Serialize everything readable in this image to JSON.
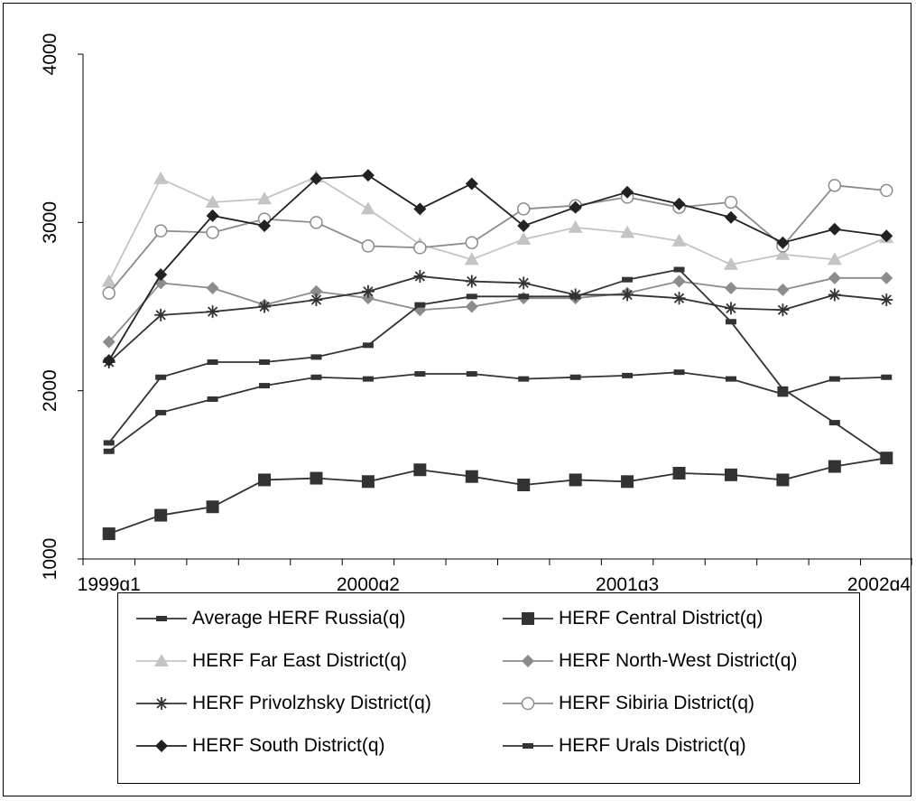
{
  "chart_data": {
    "type": "line",
    "x": [
      "1999q1",
      "1999q2",
      "1999q3",
      "1999q4",
      "2000q1",
      "2000q2",
      "2000q3",
      "2000q4",
      "2001q1",
      "2001q2",
      "2001q3",
      "2001q4",
      "2002q1",
      "2002q2",
      "2002q3",
      "2002q4"
    ],
    "x_tick_labels": [
      "1999q1",
      "2000q2",
      "2001q3",
      "2002q4"
    ],
    "y_tick_labels": [
      "1000",
      "2000",
      "3000",
      "4000"
    ],
    "ylim": [
      1000,
      4000
    ],
    "grid": false,
    "legend_placement": "bottom",
    "series": [
      {
        "name": "Average HERF Russia(q)",
        "color": "#333333",
        "marker": "dash",
        "values": [
          1640,
          1870,
          1950,
          2030,
          2080,
          2070,
          2100,
          2100,
          2070,
          2080,
          2090,
          2110,
          2070,
          1980,
          2070,
          2080
        ]
      },
      {
        "name": "HERF Central District(q)",
        "color": "#333333",
        "marker": "square",
        "values": [
          1150,
          1260,
          1310,
          1470,
          1480,
          1460,
          1530,
          1490,
          1440,
          1470,
          1460,
          1510,
          1500,
          1470,
          1550,
          1600
        ]
      },
      {
        "name": "HERF Far East District(q)",
        "color": "#c4c4c4",
        "marker": "triangle",
        "values": [
          2650,
          3260,
          3120,
          3140,
          3270,
          3080,
          2870,
          2780,
          2900,
          2970,
          2940,
          2890,
          2750,
          2810,
          2780,
          2910
        ]
      },
      {
        "name": "HERF North-West District(q)",
        "color": "#8c8c8c",
        "marker": "diamond",
        "values": [
          2290,
          2640,
          2610,
          2510,
          2590,
          2550,
          2480,
          2500,
          2550,
          2550,
          2580,
          2650,
          2610,
          2600,
          2670,
          2670
        ]
      },
      {
        "name": "HERF Privolzhsky District(q)",
        "color": "#333333",
        "marker": "star",
        "values": [
          2170,
          2450,
          2470,
          2500,
          2540,
          2590,
          2680,
          2650,
          2640,
          2570,
          2570,
          2550,
          2490,
          2480,
          2570,
          2540
        ]
      },
      {
        "name": "HERF Sibiria District(q)",
        "color": "#8c8c8c",
        "marker": "circle",
        "values": [
          2580,
          2950,
          2940,
          3020,
          3000,
          2860,
          2850,
          2880,
          3080,
          3100,
          3150,
          3090,
          3120,
          2860,
          3220,
          3190
        ]
      },
      {
        "name": "HERF South District(q)",
        "color": "#222222",
        "marker": "diamond",
        "values": [
          2180,
          2690,
          3040,
          2980,
          3260,
          3280,
          3080,
          3230,
          2980,
          3090,
          3180,
          3110,
          3030,
          2880,
          2960,
          2920
        ]
      },
      {
        "name": "HERF Urals District(q)",
        "color": "#333333",
        "marker": "dash",
        "values": [
          1690,
          2080,
          2170,
          2170,
          2200,
          2270,
          2510,
          2560,
          2560,
          2560,
          2660,
          2720,
          2410,
          2010,
          1810,
          1600
        ]
      }
    ]
  }
}
